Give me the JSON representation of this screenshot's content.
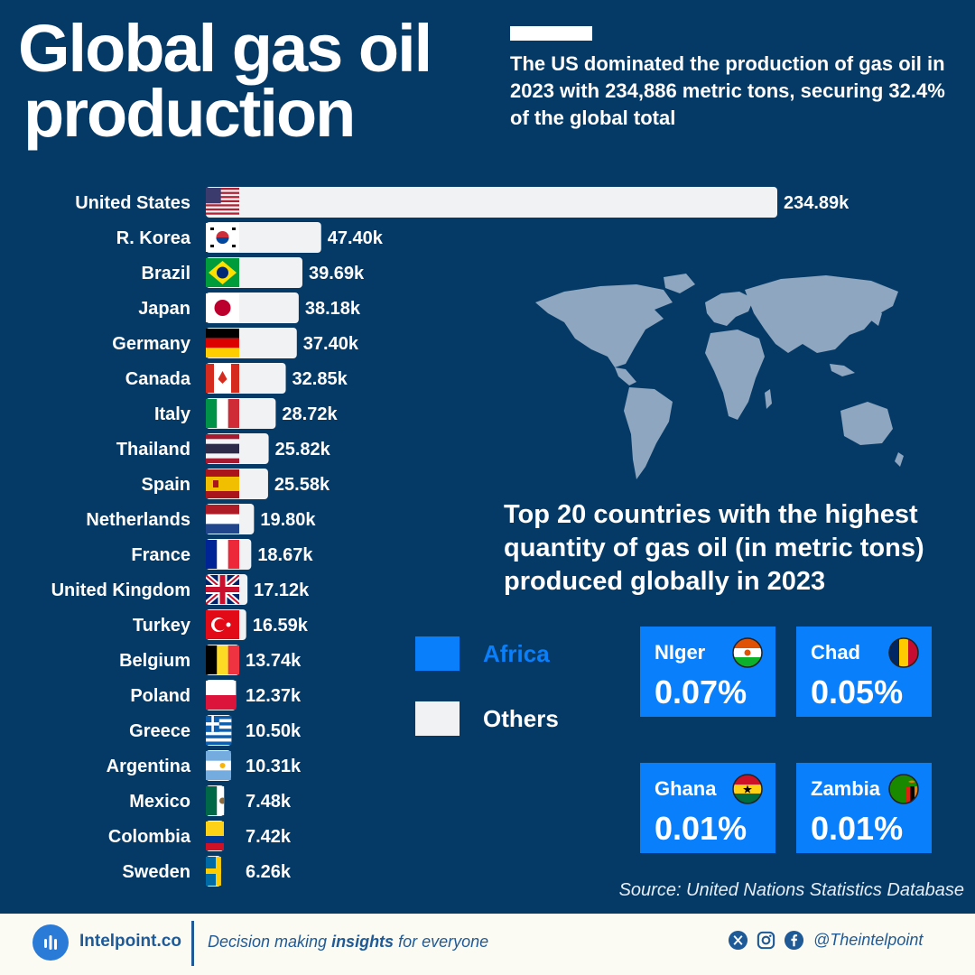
{
  "header": {
    "title_line1": "Global gas oil",
    "title_line2": "production",
    "subtitle": "The US dominated the production of gas oil in 2023 with 234,886 metric tons, securing 32.4% of the global total"
  },
  "chart_data": {
    "type": "bar",
    "orientation": "horizontal",
    "categories": [
      "United States",
      "R. Korea",
      "Brazil",
      "Japan",
      "Germany",
      "Canada",
      "Italy",
      "Thailand",
      "Spain",
      "Netherlands",
      "France",
      "United Kingdom",
      "Turkey",
      "Belgium",
      "Poland",
      "Greece",
      "Argentina",
      "Mexico",
      "Colombia",
      "Sweden"
    ],
    "values": [
      234.89,
      47.4,
      39.69,
      38.18,
      37.4,
      32.85,
      28.72,
      25.82,
      25.58,
      19.8,
      18.67,
      17.12,
      16.59,
      13.74,
      12.37,
      10.5,
      10.31,
      7.48,
      7.42,
      6.26
    ],
    "value_labels": [
      "234.89k",
      "47.40k",
      "39.69k",
      "38.18k",
      "37.40k",
      "32.85k",
      "28.72k",
      "25.82k",
      "25.58k",
      "19.80k",
      "18.67k",
      "17.12k",
      "16.59k",
      "13.74k",
      "12.37k",
      "10.50k",
      "10.31k",
      "7.48k",
      "7.42k",
      "6.26k"
    ],
    "unit": "k metric tons",
    "bar_color": "#f1f2f4",
    "title": "",
    "xlabel": "",
    "ylabel": ""
  },
  "caption": "Top 20 countries with the highest quantity of gas oil (in metric tons) produced globally in 2023",
  "legend": {
    "items": [
      {
        "label": "Africa",
        "color": "#0a7ffb"
      },
      {
        "label": "Others",
        "color": "#f1f2f4"
      }
    ]
  },
  "cards": [
    {
      "name": "NIger",
      "value": "0.07%",
      "flag": "niger-flag"
    },
    {
      "name": "Chad",
      "value": "0.05%",
      "flag": "chad-flag"
    },
    {
      "name": "Ghana",
      "value": "0.01%",
      "flag": "ghana-flag"
    },
    {
      "name": "Zambia",
      "value": "0.01%",
      "flag": "zambia-flag"
    }
  ],
  "source": "Source: United Nations Statistics Database",
  "footer": {
    "brand": "Intelpoint.co",
    "tagline_pre": "Decision making ",
    "tagline_bold": "insights",
    "tagline_post": " for everyone",
    "handle": "@Theintelpoint"
  },
  "colors": {
    "background": "#053a66",
    "africa": "#0a7ffb",
    "map": "#8ea6bf"
  }
}
